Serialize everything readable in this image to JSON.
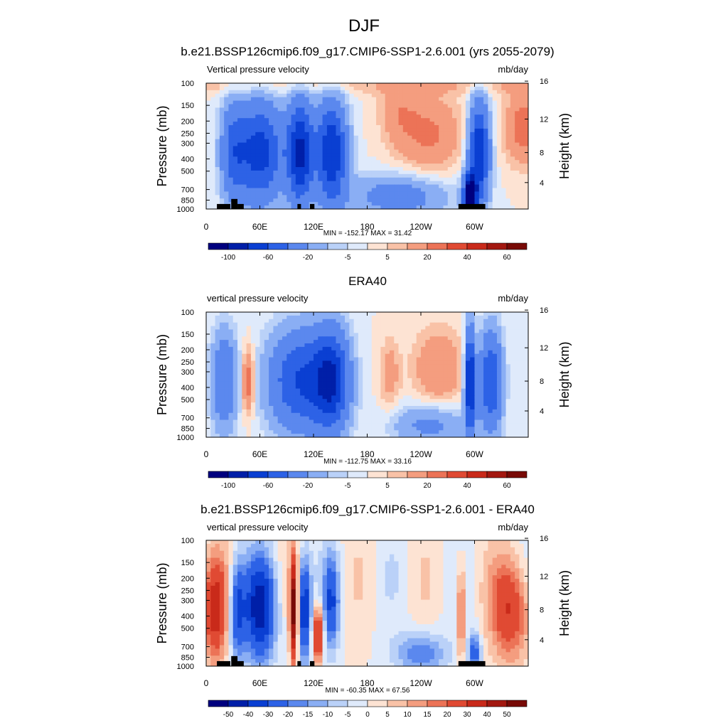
{
  "figure": {
    "title": "DJF"
  },
  "colors": {
    "neg": [
      "#00007f",
      "#001fa8",
      "#0a3fd2",
      "#2d62e6",
      "#5b88ee",
      "#8aaef4",
      "#bad1f8",
      "#dfeafb"
    ],
    "pos": [
      "#fde3d3",
      "#f9c2a7",
      "#f49d7f",
      "#ec7357",
      "#e04a33",
      "#c92a1a",
      "#a31810",
      "#780a06"
    ]
  },
  "chart_data": [
    {
      "type": "heatmap",
      "title": "b.e21.BSSP126cmip6.f09_g17.CMIP6-SSP1-2.6.001 (yrs 2055-2079)",
      "left_label": "Vertical pressure velocity",
      "right_label": "mb/day",
      "xlabel": "",
      "ylabel": "Pressure (mb)",
      "y2label": "Height (km)",
      "x_ticks": [
        "0",
        "60E",
        "120E",
        "180",
        "120W",
        "60W"
      ],
      "y_ticks": [
        "100",
        "150",
        "200",
        "250",
        "300",
        "400",
        "500",
        "700",
        "850",
        "1000"
      ],
      "y2_ticks": [
        "16",
        "12",
        "8",
        "4"
      ],
      "stats": "MIN = -152.17  MAX =  31.42",
      "colorbar_labels": [
        "-100",
        "-60",
        "-20",
        "-5",
        "5",
        "20",
        "40",
        "60"
      ],
      "value_range": [
        -152.17,
        31.42
      ]
    },
    {
      "type": "heatmap",
      "title": "ERA40",
      "left_label": "vertical pressure velocity",
      "right_label": "mb/day",
      "xlabel": "",
      "ylabel": "Pressure (mb)",
      "y2label": "Height (km)",
      "x_ticks": [
        "0",
        "60E",
        "120E",
        "180",
        "120W",
        "60W"
      ],
      "y_ticks": [
        "100",
        "150",
        "200",
        "250",
        "300",
        "400",
        "500",
        "700",
        "850",
        "1000"
      ],
      "y2_ticks": [
        "16",
        "12",
        "8",
        "4"
      ],
      "stats": "MIN = -112.75  MAX =  33.16",
      "colorbar_labels": [
        "-100",
        "-60",
        "-20",
        "-5",
        "5",
        "20",
        "40",
        "60"
      ],
      "value_range": [
        -112.75,
        33.16
      ]
    },
    {
      "type": "heatmap",
      "title": "b.e21.BSSP126cmip6.f09_g17.CMIP6-SSP1-2.6.001 - ERA40",
      "left_label": "vertical pressure velocity",
      "right_label": "mb/day",
      "xlabel": "",
      "ylabel": "Pressure (mb)",
      "y2label": "Height (km)",
      "x_ticks": [
        "0",
        "60E",
        "120E",
        "180",
        "120W",
        "60W"
      ],
      "y_ticks": [
        "100",
        "150",
        "200",
        "250",
        "300",
        "400",
        "500",
        "700",
        "850",
        "1000"
      ],
      "y2_ticks": [
        "16",
        "12",
        "8",
        "4"
      ],
      "stats": "MIN = -60.35  MAX =  67.56",
      "colorbar_labels": [
        "-50",
        "-40",
        "-30",
        "-20",
        "-15",
        "-10",
        "-5",
        "0",
        "5",
        "10",
        "15",
        "20",
        "30",
        "40",
        "50"
      ],
      "value_range": [
        -60.35,
        67.56
      ]
    }
  ]
}
